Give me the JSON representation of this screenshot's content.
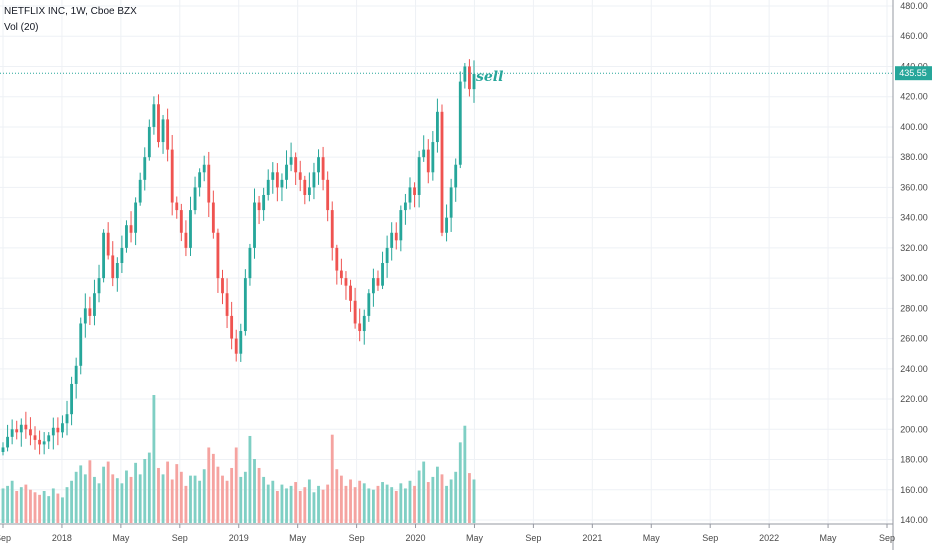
{
  "header": {
    "symbol_line": "NETFLIX INC, 1W, Cboe BZX",
    "volume_label": "Vol (20)"
  },
  "colors": {
    "up": "#26a69a",
    "down": "#ef5350",
    "up_volume": "#7fcfc4",
    "down_volume": "#f5a3a0",
    "grid": "#eef1f5",
    "price_line": "#26a69a"
  },
  "chart_data": {
    "type": "candlestick",
    "title": "NETFLIX INC, 1W, Cboe BZX",
    "indicator": "Vol (20)",
    "ylim": [
      140,
      480
    ],
    "y_ticks": [
      "140.00",
      "160.00",
      "180.00",
      "200.00",
      "220.00",
      "240.00",
      "260.00",
      "280.00",
      "300.00",
      "320.00",
      "340.00",
      "360.00",
      "380.00",
      "400.00",
      "420.00",
      "440.00",
      "460.00",
      "480.00"
    ],
    "x_ticks": [
      "Sep",
      "2018",
      "May",
      "Sep",
      "2019",
      "May",
      "Sep",
      "2020",
      "May",
      "Sep",
      "2021",
      "May",
      "Sep",
      "2022",
      "May",
      "Sep"
    ],
    "last_price": "435.55",
    "annotation": "sell",
    "grid": true,
    "price_levels": [
      188,
      195,
      200,
      198,
      203,
      200,
      196,
      193,
      190,
      192,
      196,
      201,
      198,
      204,
      210,
      230,
      242,
      270,
      280,
      275,
      290,
      300,
      330,
      315,
      300,
      310,
      320,
      335,
      330,
      350,
      365,
      380,
      400,
      415,
      390,
      405,
      385,
      350,
      345,
      330,
      320,
      345,
      360,
      370,
      375,
      350,
      330,
      300,
      290,
      275,
      260,
      250,
      265,
      300,
      320,
      350,
      345,
      355,
      365,
      370,
      360,
      365,
      375,
      380,
      370,
      365,
      355,
      360,
      370,
      380,
      365,
      345,
      320,
      305,
      300,
      295,
      285,
      270,
      265,
      275,
      290,
      300,
      295,
      310,
      320,
      330,
      325,
      345,
      350,
      360,
      355,
      380,
      385,
      370,
      390,
      410,
      330,
      340,
      360,
      375,
      430,
      440,
      425,
      435
    ],
    "volume_levels": [
      0.27,
      0.29,
      0.33,
      0.25,
      0.28,
      0.3,
      0.26,
      0.24,
      0.22,
      0.25,
      0.21,
      0.27,
      0.23,
      0.2,
      0.28,
      0.33,
      0.4,
      0.45,
      0.38,
      0.49,
      0.36,
      0.31,
      0.44,
      0.48,
      0.38,
      0.35,
      0.31,
      0.41,
      0.36,
      0.47,
      0.38,
      0.5,
      0.55,
      1.0,
      0.43,
      0.38,
      0.48,
      0.34,
      0.46,
      0.4,
      0.29,
      0.37,
      0.37,
      0.33,
      0.42,
      0.59,
      0.54,
      0.44,
      0.37,
      0.33,
      0.43,
      0.59,
      0.36,
      0.4,
      0.68,
      0.5,
      0.43,
      0.36,
      0.3,
      0.33,
      0.25,
      0.3,
      0.27,
      0.29,
      0.32,
      0.25,
      0.28,
      0.34,
      0.24,
      0.29,
      0.26,
      0.3,
      0.69,
      0.42,
      0.37,
      0.29,
      0.34,
      0.28,
      0.33,
      0.31,
      0.27,
      0.26,
      0.29,
      0.32,
      0.3,
      0.28,
      0.25,
      0.31,
      0.27,
      0.33,
      0.29,
      0.41,
      0.48,
      0.32,
      0.36,
      0.44,
      0.38,
      0.29,
      0.34,
      0.4,
      0.63,
      0.76,
      0.39,
      0.34
    ]
  }
}
